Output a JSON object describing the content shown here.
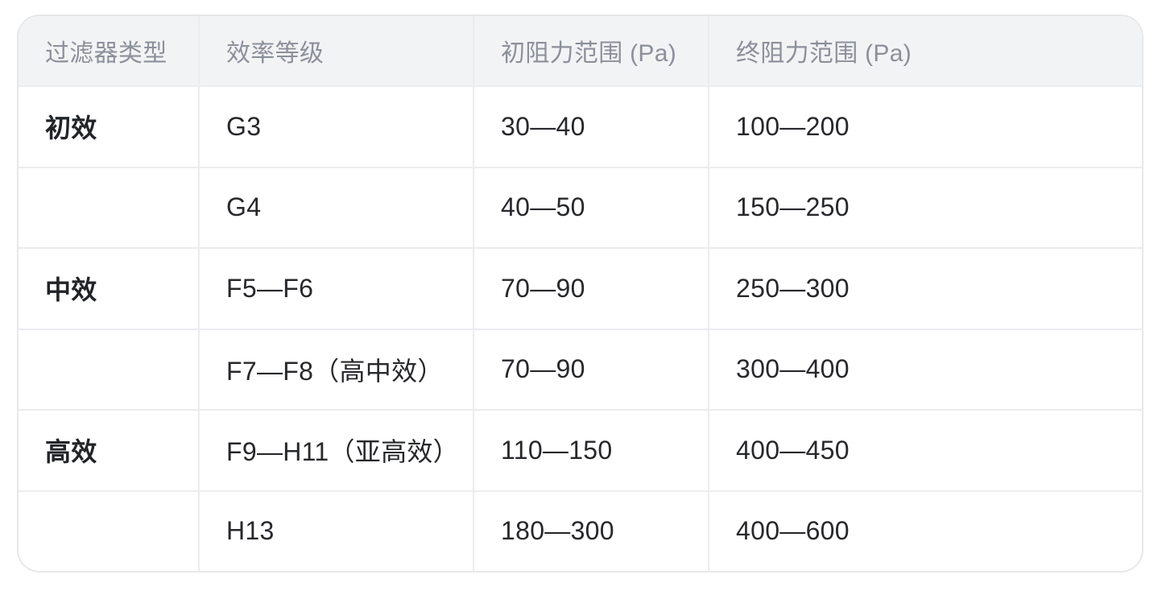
{
  "table": {
    "columns": [
      {
        "label": "过滤器类型"
      },
      {
        "label": "效率等级"
      },
      {
        "label": "初阻力范围 (Pa)"
      },
      {
        "label": "终阻力范围 (Pa)"
      }
    ],
    "rows": [
      {
        "type": "初效",
        "grade": "G3",
        "initial": "30—40",
        "final": "100—200"
      },
      {
        "type": "",
        "grade": "G4",
        "initial": "40—50",
        "final": "150—250"
      },
      {
        "type": "中效",
        "grade": "F5—F6",
        "initial": "70—90",
        "final": "250—300"
      },
      {
        "type": "",
        "grade": "F7—F8（高中效）",
        "initial": "70—90",
        "final": "300—400"
      },
      {
        "type": "高效",
        "grade": "F9—H11（亚高效）",
        "initial": "110—150",
        "final": "400—450"
      },
      {
        "type": "",
        "grade": "H13",
        "initial": "180—300",
        "final": "400—600"
      }
    ],
    "colors": {
      "header_bg": "#f2f3f5",
      "border": "#e7e8ea",
      "inner_border": "#ebecee",
      "header_text": "#8b909a",
      "body_text": "#27282b",
      "bold_text": "#222427",
      "row_bg": "#ffffff"
    }
  }
}
